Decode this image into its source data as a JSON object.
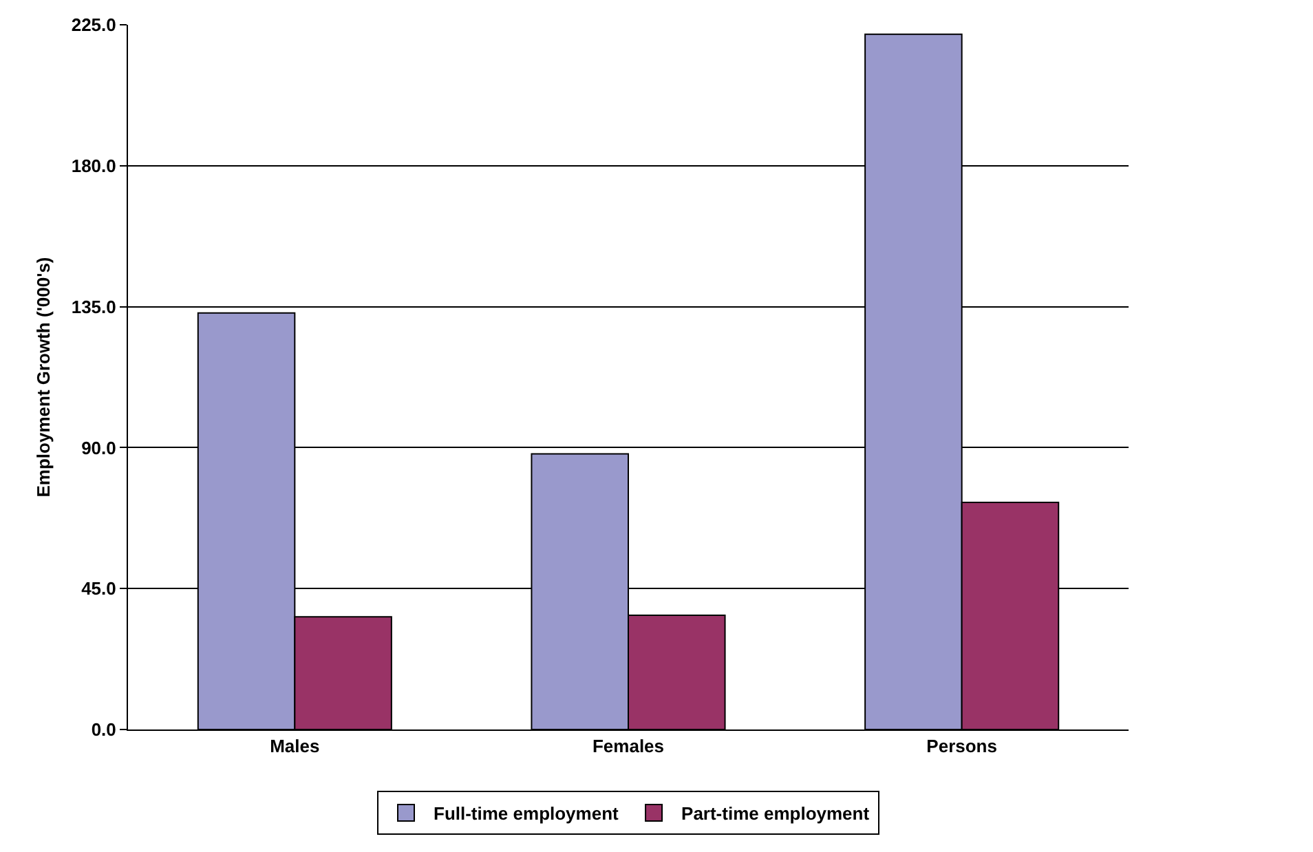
{
  "chart_data": {
    "type": "bar",
    "ylabel": "Employment Growth ('000's)",
    "categories": [
      "Males",
      "Females",
      "Persons"
    ],
    "series": [
      {
        "name": "Full-time employment",
        "color": "#9999cc",
        "values": [
          133,
          88,
          222
        ]
      },
      {
        "name": "Part-time employment",
        "color": "#993366",
        "values": [
          36,
          36.5,
          72.5
        ]
      }
    ],
    "ylim": [
      0,
      225
    ],
    "yticks": [
      {
        "value": 0,
        "label": "0.0"
      },
      {
        "value": 45,
        "label": "45.0"
      },
      {
        "value": 90,
        "label": "90.0"
      },
      {
        "value": 135,
        "label": "135.0"
      },
      {
        "value": 180,
        "label": "180.0"
      },
      {
        "value": 225,
        "label": "225.0"
      }
    ],
    "grid": "y",
    "legend": "bottom"
  }
}
